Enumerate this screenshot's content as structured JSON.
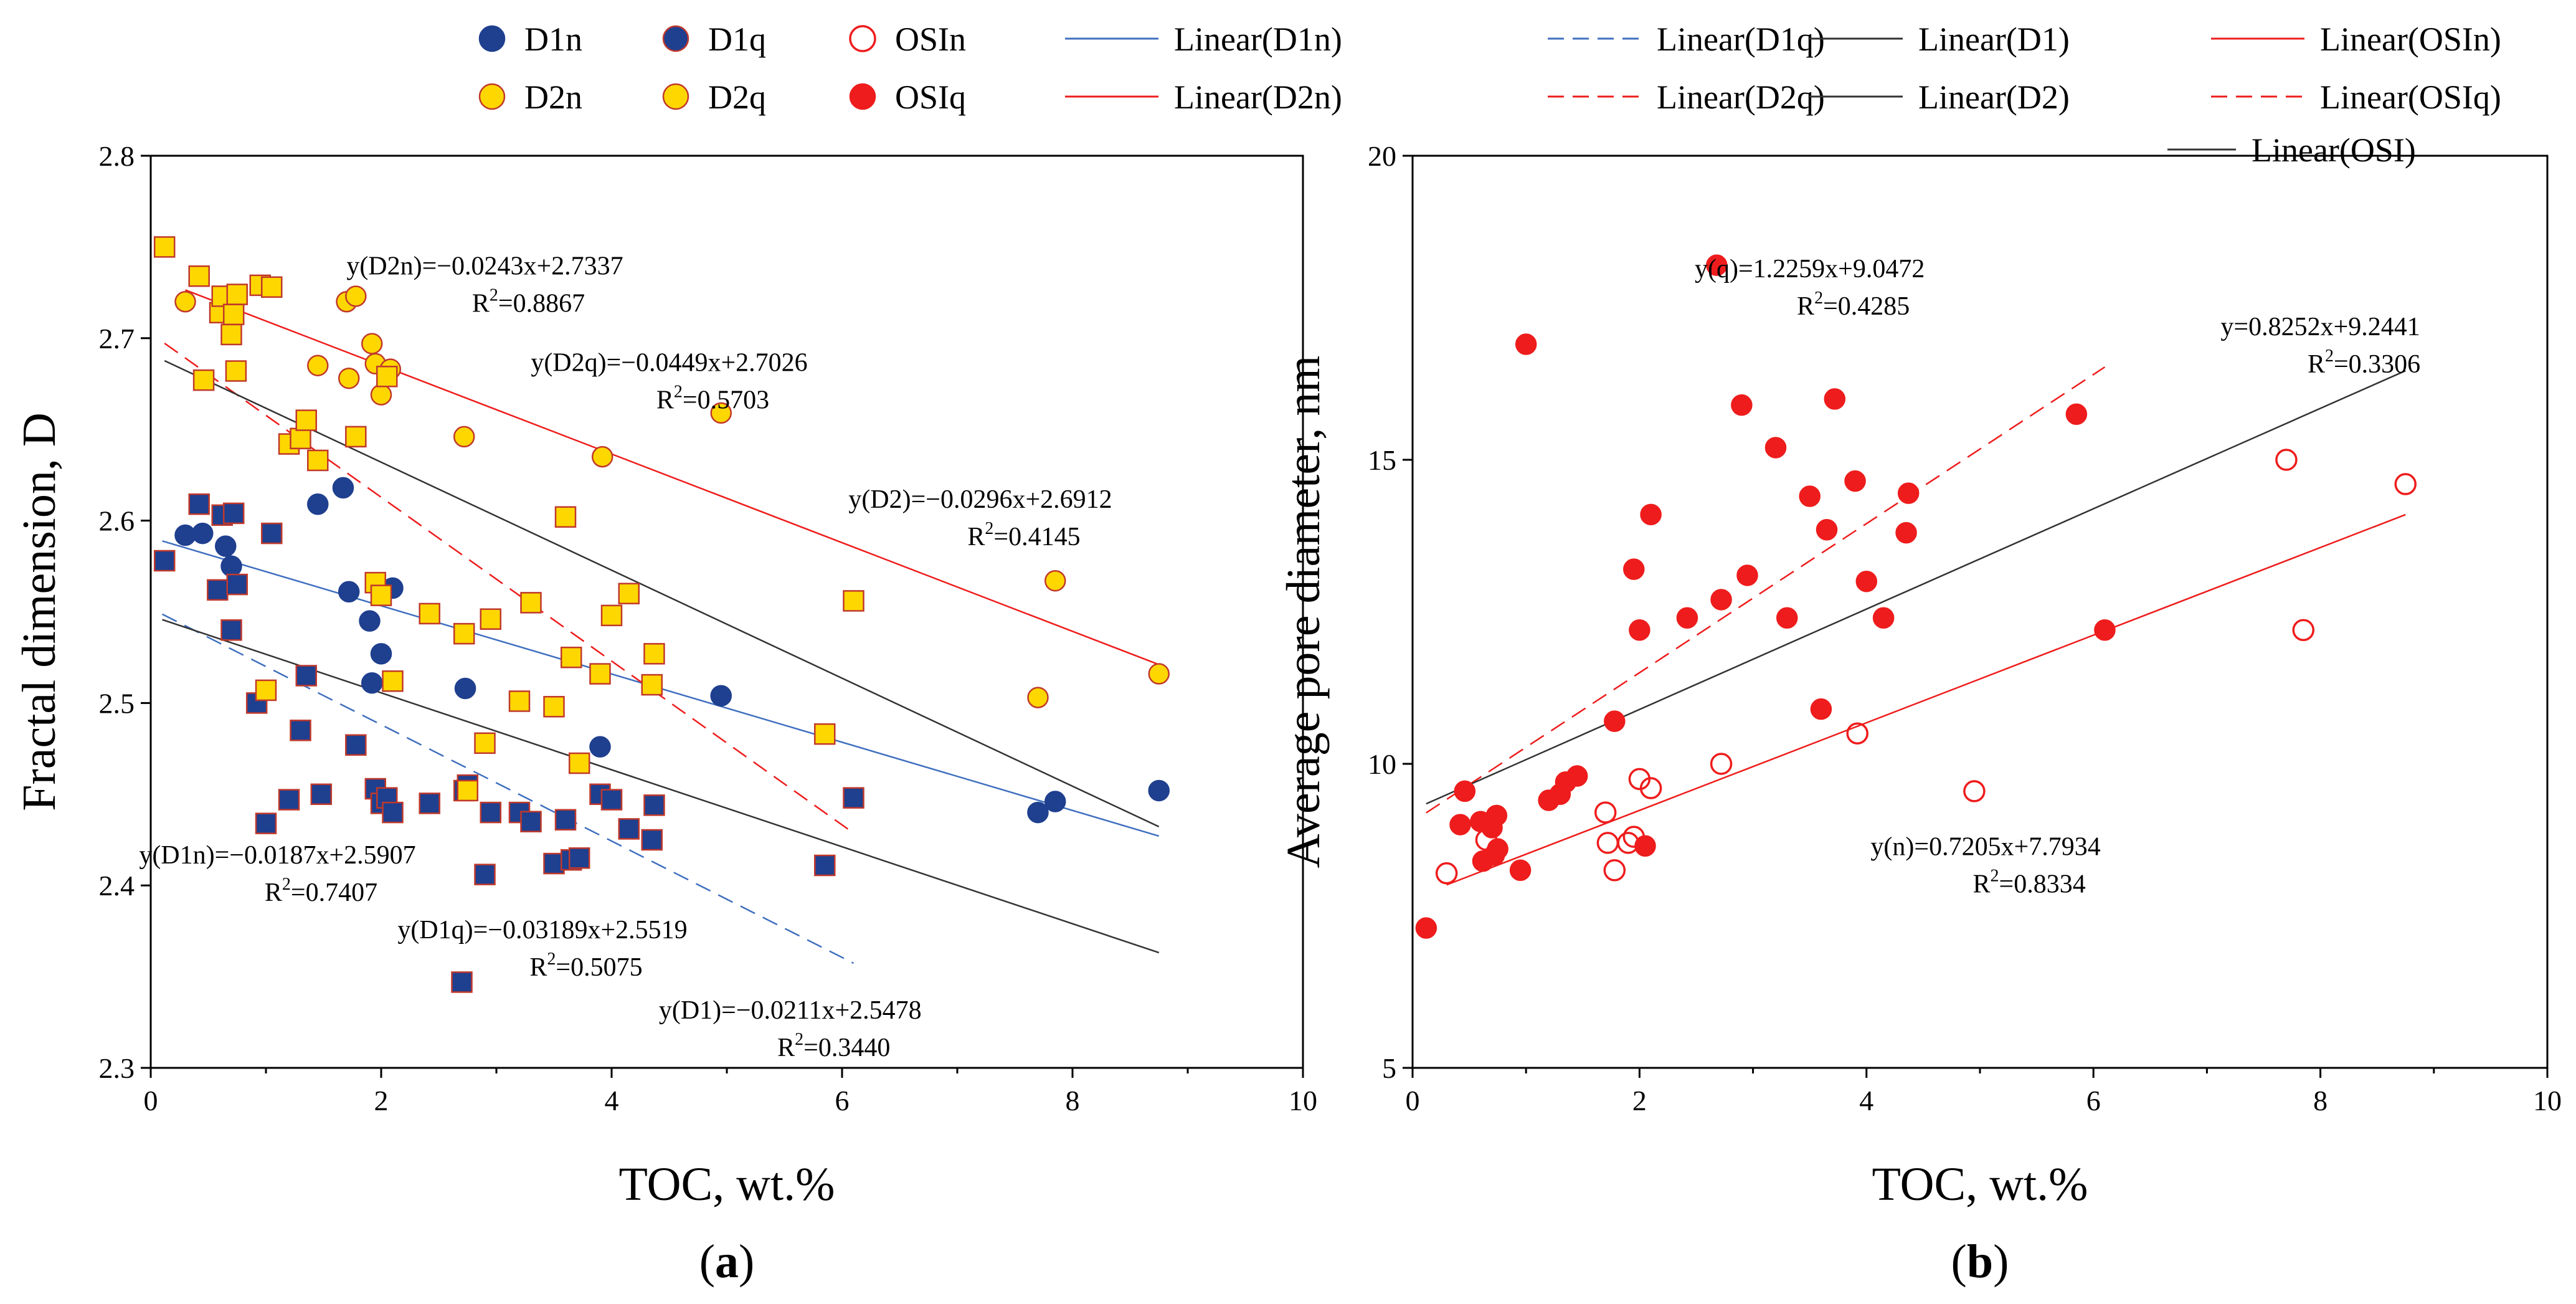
{
  "colors": {
    "navy": "#1f3f8f",
    "yellow": "#ffd700",
    "yellow_edge": "#c0392b",
    "red": "#ee1c1c",
    "blue_line": "#3f6fbf",
    "black_line": "#333333"
  },
  "legend": [
    {
      "label": "D1n",
      "kind": "marker",
      "shape": "circle",
      "fill": "#1f3f8f",
      "stroke": "#1f3f8f"
    },
    {
      "label": "D1q",
      "kind": "marker",
      "shape": "circle",
      "fill": "#1f3f8f",
      "stroke": "#c0392b"
    },
    {
      "label": "OSIn",
      "kind": "marker",
      "shape": "circle",
      "fill": "none",
      "stroke": "#ee1c1c"
    },
    {
      "label": "Linear(D1n)",
      "kind": "line",
      "color": "#3f6fbf",
      "dash": "solid"
    },
    {
      "label": "Linear(D1q)",
      "kind": "line",
      "color": "#3f6fbf",
      "dash": "dashed"
    },
    {
      "label": "Linear(D1)",
      "kind": "line",
      "color": "#333333",
      "dash": "solid"
    },
    {
      "label": "Linear(OSIn)",
      "kind": "line",
      "color": "#ee1c1c",
      "dash": "solid"
    },
    {
      "label": "D2n",
      "kind": "marker",
      "shape": "circle",
      "fill": "#ffd700",
      "stroke": "#c0392b"
    },
    {
      "label": "D2q",
      "kind": "marker",
      "shape": "circle",
      "fill": "#ffd700",
      "stroke": "#c0392b"
    },
    {
      "label": "OSIq",
      "kind": "marker",
      "shape": "circle",
      "fill": "#ee1c1c",
      "stroke": "#ee1c1c"
    },
    {
      "label": "Linear(D2n)",
      "kind": "line",
      "color": "#ee1c1c",
      "dash": "solid"
    },
    {
      "label": "Linear(D2q)",
      "kind": "line",
      "color": "#ee1c1c",
      "dash": "dashed"
    },
    {
      "label": "Linear(D2)",
      "kind": "line",
      "color": "#333333",
      "dash": "solid"
    },
    {
      "label": "Linear(OSIq)",
      "kind": "line",
      "color": "#ee1c1c",
      "dash": "dashed"
    },
    {
      "label": "Linear(OSI)",
      "kind": "line",
      "color": "#333333",
      "dash": "solid"
    }
  ],
  "chart_data": [
    {
      "id": "a",
      "type": "scatter",
      "caption": "(a)",
      "xlabel": "TOC, wt.%",
      "ylabel": "Fractal dimension, D",
      "xlim": [
        0,
        10
      ],
      "ylim": [
        2.3,
        2.8
      ],
      "xticks": [
        0,
        2,
        4,
        6,
        8,
        10
      ],
      "yticks": [
        2.3,
        2.4,
        2.5,
        2.6,
        2.7,
        2.8
      ],
      "ytick_decimals": 1,
      "series": [
        {
          "name": "D1n",
          "marker": "circle",
          "fill": "#1f3f8f",
          "stroke": "#1f3f8f",
          "x": [
            0.3,
            0.45,
            0.65,
            0.7,
            1.45,
            1.67,
            1.72,
            1.9,
            1.92,
            2.0,
            2.1,
            2.73,
            3.9,
            4.95,
            7.7,
            7.85,
            8.75
          ],
          "y": [
            2.592,
            2.593,
            2.586,
            2.575,
            2.609,
            2.618,
            2.561,
            2.545,
            2.511,
            2.527,
            2.563,
            2.508,
            2.476,
            2.504,
            2.44,
            2.446,
            2.452
          ]
        },
        {
          "name": "D1q",
          "marker": "square",
          "fill": "#1f3f8f",
          "stroke": "#c0392b",
          "x": [
            0.12,
            0.42,
            0.58,
            0.62,
            0.7,
            0.75,
            0.72,
            1.05,
            0.92,
            1.0,
            1.2,
            1.3,
            1.35,
            1.48,
            1.78,
            1.95,
            2.0,
            2.05,
            2.1,
            2.42,
            2.72,
            2.75,
            2.9,
            2.95,
            3.2,
            3.3,
            3.5,
            3.6,
            3.65,
            3.72,
            3.9,
            4.0,
            4.15,
            4.35,
            4.37,
            5.85,
            6.1,
            2.7
          ],
          "y": [
            2.578,
            2.609,
            2.562,
            2.603,
            2.54,
            2.565,
            2.604,
            2.593,
            2.5,
            2.434,
            2.447,
            2.485,
            2.515,
            2.45,
            2.477,
            2.453,
            2.445,
            2.448,
            2.44,
            2.445,
            2.452,
            2.455,
            2.406,
            2.44,
            2.44,
            2.435,
            2.412,
            2.436,
            2.414,
            2.415,
            2.45,
            2.447,
            2.431,
            2.425,
            2.444,
            2.411,
            2.448,
            2.347
          ]
        },
        {
          "name": "D2n",
          "marker": "circle",
          "fill": "#ffd700",
          "stroke": "#c0392b",
          "x": [
            0.3,
            1.45,
            1.7,
            1.72,
            1.78,
            1.92,
            1.95,
            2.0,
            2.08,
            2.72,
            3.92,
            4.95,
            7.7,
            7.85,
            8.75
          ],
          "y": [
            2.72,
            2.685,
            2.72,
            2.678,
            2.723,
            2.697,
            2.686,
            2.669,
            2.683,
            2.646,
            2.635,
            2.659,
            2.503,
            2.567,
            2.516
          ]
        },
        {
          "name": "D2q",
          "marker": "square",
          "fill": "#ffd700",
          "stroke": "#c0392b",
          "x": [
            0.12,
            0.42,
            0.46,
            0.6,
            0.62,
            0.7,
            0.72,
            0.75,
            0.74,
            0.95,
            1.05,
            1.0,
            1.2,
            1.3,
            1.35,
            1.45,
            1.78,
            1.95,
            2.0,
            2.05,
            2.1,
            2.42,
            2.72,
            2.75,
            2.9,
            2.95,
            3.2,
            3.3,
            3.5,
            3.6,
            3.65,
            3.72,
            3.9,
            4.0,
            4.15,
            4.35,
            4.37,
            5.85,
            6.1
          ],
          "y": [
            2.75,
            2.734,
            2.677,
            2.714,
            2.723,
            2.702,
            2.713,
            2.724,
            2.682,
            2.729,
            2.728,
            2.507,
            2.642,
            2.645,
            2.655,
            2.633,
            2.646,
            2.566,
            2.559,
            2.679,
            2.512,
            2.549,
            2.538,
            2.452,
            2.478,
            2.546,
            2.501,
            2.555,
            2.498,
            2.602,
            2.525,
            2.467,
            2.516,
            2.548,
            2.56,
            2.51,
            2.527,
            2.483,
            2.556
          ]
        }
      ],
      "fits": [
        {
          "name": "Linear(D1n)",
          "slope": -0.0187,
          "intercept": 2.5907,
          "x_range": [
            0.1,
            8.75
          ],
          "color": "#3f6fbf",
          "dash": "solid"
        },
        {
          "name": "Linear(D1q)",
          "slope": -0.03189,
          "intercept": 2.5519,
          "x_range": [
            0.1,
            6.1
          ],
          "color": "#3f6fbf",
          "dash": "dashed"
        },
        {
          "name": "Linear(D1)",
          "slope": -0.0211,
          "intercept": 2.5478,
          "x_range": [
            0.1,
            8.75
          ],
          "color": "#333333",
          "dash": "solid"
        },
        {
          "name": "Linear(D2n)",
          "slope": -0.0243,
          "intercept": 2.7337,
          "x_range": [
            0.3,
            8.75
          ],
          "color": "#ee1c1c",
          "dash": "solid"
        },
        {
          "name": "Linear(D2q)",
          "slope": -0.0449,
          "intercept": 2.7026,
          "x_range": [
            0.12,
            6.1
          ],
          "color": "#ee1c1c",
          "dash": "dashed"
        },
        {
          "name": "Linear(D2)",
          "slope": -0.0296,
          "intercept": 2.6912,
          "x_range": [
            0.12,
            8.75
          ],
          "color": "#333333",
          "dash": "solid"
        }
      ],
      "annotations": [
        {
          "eq": "y(D2n)=−0.0243x+2.7337",
          "r2": "0.8867",
          "at": [
            2.9,
            2.735
          ]
        },
        {
          "eq": "y(D2q)=−0.0449x+2.7026",
          "r2": "0.5703",
          "at": [
            4.5,
            2.682
          ]
        },
        {
          "eq": "y(D2)=−0.0296x+2.6912",
          "r2": "0.4145",
          "at": [
            7.2,
            2.607
          ]
        },
        {
          "eq": "y(D1n)=−0.0187x+2.5907",
          "r2": "0.7407",
          "at": [
            1.1,
            2.412
          ]
        },
        {
          "eq": "y(D1q)=−0.03189x+2.5519",
          "r2": "0.5075",
          "at": [
            3.4,
            2.371
          ]
        },
        {
          "eq": "y(D1)=−0.0211x+2.5478",
          "r2": "0.3440",
          "at": [
            5.55,
            2.327
          ]
        }
      ]
    },
    {
      "id": "b",
      "type": "scatter",
      "caption": "(b)",
      "xlabel": "TOC, wt.%",
      "ylabel": "Average pore diameter, nm",
      "xlim": [
        0,
        10
      ],
      "ylim": [
        5,
        20
      ],
      "xticks": [
        0,
        2,
        4,
        6,
        8,
        10
      ],
      "yticks": [
        5,
        10,
        15,
        20
      ],
      "ytick_decimals": 0,
      "series": [
        {
          "name": "OSIn",
          "marker": "circle",
          "fill": "none",
          "stroke": "#ee1c1c",
          "x": [
            0.3,
            0.65,
            1.7,
            1.72,
            1.78,
            1.9,
            1.95,
            2.0,
            2.1,
            2.72,
            3.92,
            4.95,
            7.7,
            7.85,
            8.75
          ],
          "y": [
            8.2,
            8.75,
            9.2,
            8.7,
            8.25,
            8.7,
            8.8,
            9.75,
            9.6,
            10.0,
            10.5,
            9.55,
            15.0,
            12.2,
            14.6
          ]
        },
        {
          "name": "OSIq",
          "marker": "circle",
          "fill": "#ee1c1c",
          "stroke": "#ee1c1c",
          "x": [
            0.12,
            0.42,
            0.46,
            0.6,
            0.62,
            0.7,
            0.72,
            0.75,
            0.74,
            0.95,
            1.0,
            1.2,
            1.3,
            1.35,
            1.45,
            1.78,
            1.95,
            2.0,
            2.05,
            2.1,
            2.42,
            2.72,
            2.68,
            2.9,
            2.95,
            3.2,
            3.3,
            3.5,
            3.6,
            3.65,
            3.72,
            3.9,
            4.0,
            4.15,
            4.35,
            4.37,
            5.85,
            6.1
          ],
          "y": [
            7.3,
            9.0,
            9.55,
            9.05,
            8.4,
            8.95,
            8.5,
            8.6,
            9.15,
            8.25,
            16.9,
            9.4,
            9.5,
            9.7,
            9.8,
            10.7,
            13.2,
            12.2,
            8.65,
            14.1,
            12.4,
            12.7,
            18.2,
            15.9,
            13.1,
            15.2,
            12.4,
            14.4,
            10.9,
            13.85,
            16.0,
            14.65,
            13.0,
            12.4,
            13.8,
            14.45,
            15.75,
            12.2
          ]
        }
      ],
      "fits": [
        {
          "name": "Linear(OSIn)",
          "slope": 0.7205,
          "intercept": 7.7934,
          "x_range": [
            0.3,
            8.75
          ],
          "color": "#ee1c1c",
          "dash": "solid"
        },
        {
          "name": "Linear(OSIq)",
          "slope": 1.2259,
          "intercept": 9.0472,
          "x_range": [
            0.12,
            6.1
          ],
          "color": "#ee1c1c",
          "dash": "dashed"
        },
        {
          "name": "Linear(OSI)",
          "slope": 0.8252,
          "intercept": 9.2441,
          "x_range": [
            0.12,
            8.75
          ],
          "color": "#333333",
          "dash": "solid"
        }
      ],
      "annotations": [
        {
          "eq": "y(q)=1.2259x+9.0472",
          "r2": "0.4285",
          "at": [
            3.5,
            18.0
          ]
        },
        {
          "eq": "y=0.8252x+9.2441",
          "r2": "0.3306",
          "at": [
            8.0,
            17.05
          ]
        },
        {
          "eq": "y(n)=0.7205x+7.7934",
          "r2": "0.8334",
          "at": [
            5.05,
            8.5
          ]
        }
      ]
    }
  ]
}
